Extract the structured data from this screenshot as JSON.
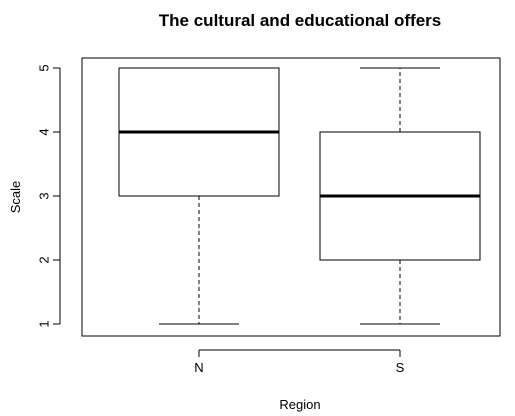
{
  "chart_data": {
    "type": "box",
    "title": "The cultural and educational offers",
    "xlabel": "Region",
    "ylabel": "Scale",
    "categories": [
      "N",
      "S"
    ],
    "boxes": [
      {
        "category": "N",
        "min": 1,
        "q1": 3,
        "median": 4,
        "q3": 5,
        "max": 5
      },
      {
        "category": "S",
        "min": 1,
        "q1": 2,
        "median": 3,
        "q3": 4,
        "max": 5
      }
    ],
    "ylim": [
      1,
      5
    ],
    "yticks": [
      1,
      2,
      3,
      4,
      5
    ],
    "grid": false,
    "legend": "none"
  }
}
